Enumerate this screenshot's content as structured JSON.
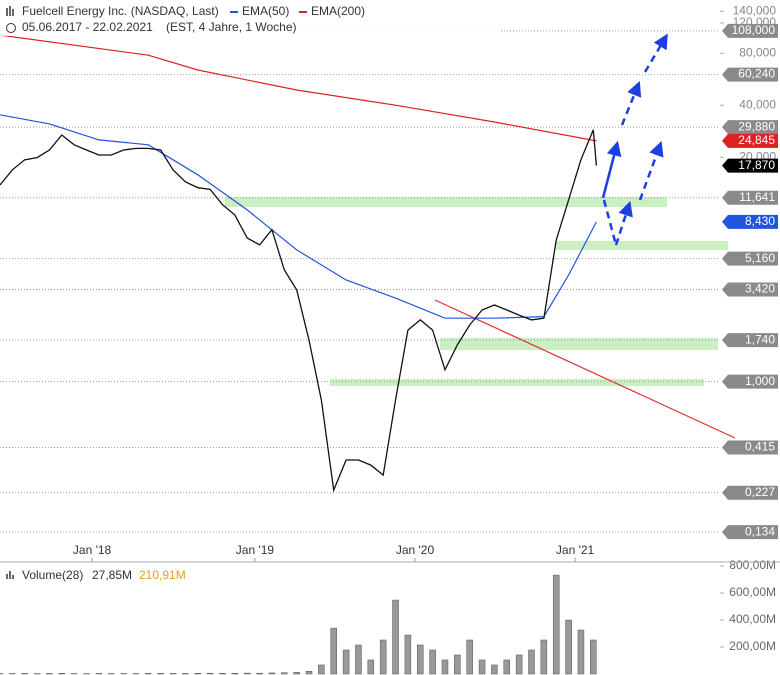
{
  "chart_data": [
    {
      "type": "line",
      "title": "Fuelcell Energy Inc. (NASDAQ, Last)",
      "subtitle": "05.06.2017 - 22.02.2021",
      "note": "(EST, 4 Jahre, 1 Woche)",
      "log_scale": true,
      "xlim": [
        0,
        233
      ],
      "ylim": [
        0.09,
        163
      ],
      "xticks": [
        {
          "value": 29.8,
          "label": "Jan '18"
        },
        {
          "value": 82.5,
          "label": "Jan '19"
        },
        {
          "value": 134.3,
          "label": "Jan '20"
        },
        {
          "value": 186.1,
          "label": "Jan '21"
        }
      ],
      "yticks": [
        {
          "value": 140,
          "label": "140,000"
        },
        {
          "value": 120,
          "label": "120,000"
        },
        {
          "value": 80,
          "label": "80,000"
        },
        {
          "value": 40,
          "label": "40,000"
        },
        {
          "value": 20,
          "label": "20,000"
        }
      ],
      "level_ticks": [
        {
          "value": 108,
          "label": "108,000"
        },
        {
          "value": 60.24,
          "label": "60,240"
        },
        {
          "value": 29.88,
          "label": "29,880"
        },
        {
          "value": 11.641,
          "label": "11,641"
        },
        {
          "value": 5.16,
          "label": "5,160"
        },
        {
          "value": 3.42,
          "label": "3,420"
        },
        {
          "value": 1.74,
          "label": "1,740"
        },
        {
          "value": 1.0,
          "label": "1,000"
        },
        {
          "value": 0.415,
          "label": "0,415"
        },
        {
          "value": 0.227,
          "label": "0,227"
        },
        {
          "value": 0.134,
          "label": "0,134"
        }
      ],
      "last_label": {
        "value": 17.87,
        "label": "17,870"
      },
      "price": {
        "color": "#111111",
        "x": [
          0,
          4,
          8,
          12,
          16,
          20,
          24,
          28,
          32,
          36,
          40,
          44,
          48,
          52,
          56,
          60,
          64,
          68,
          72,
          76,
          80,
          84,
          88,
          92,
          96,
          100,
          104,
          108,
          112,
          116,
          120,
          124,
          128,
          132,
          136,
          140,
          144,
          148,
          152,
          156,
          160,
          164,
          168,
          172,
          176,
          180,
          184,
          188,
          192,
          193
        ],
        "values": [
          13.8,
          16.9,
          19.3,
          19.9,
          22.0,
          26.9,
          23.6,
          22.0,
          20.6,
          20.6,
          22.0,
          22.5,
          22.5,
          22.0,
          16.9,
          14.4,
          13.3,
          13.0,
          10.6,
          9.25,
          6.8,
          6.2,
          7.6,
          4.44,
          3.4,
          1.74,
          0.78,
          0.235,
          0.351,
          0.351,
          0.328,
          0.287,
          0.78,
          1.99,
          2.28,
          1.99,
          1.17,
          1.63,
          2.13,
          2.6,
          2.78,
          2.6,
          2.43,
          2.28,
          2.33,
          6.6,
          11.3,
          19.3,
          28.8,
          17.87
        ]
      },
      "series": [
        {
          "name": "EMA(50)",
          "color": "#2255dd",
          "x": [
            0,
            16,
            32,
            48,
            64,
            80,
            96,
            112,
            128,
            144,
            160,
            176,
            184,
            193
          ],
          "values": [
            35.2,
            31.2,
            25.2,
            23.6,
            15.8,
            9.9,
            5.8,
            3.88,
            3.05,
            2.33,
            2.33,
            2.38,
            4.15,
            8.43
          ],
          "last_label": {
            "value": 8.43,
            "label": "8,430"
          }
        },
        {
          "name": "EMA(200)",
          "color": "#dd2222",
          "x": [
            0,
            48,
            64,
            96,
            128,
            160,
            193
          ],
          "values": [
            102,
            78,
            64,
            49,
            40,
            32,
            24.845
          ],
          "last_label": {
            "value": 24.845,
            "label": "24,845"
          }
        }
      ]
    },
    {
      "type": "bar",
      "title": "Volume(28)",
      "value_label": "27,85M",
      "max_label": "210,91M",
      "color": "#999999",
      "ylim": [
        0,
        830
      ],
      "yticks": [
        {
          "value": 200,
          "label": "200,00M"
        },
        {
          "value": 400,
          "label": "400,00M"
        },
        {
          "value": 600,
          "label": "600,00M"
        },
        {
          "value": 800,
          "label": "800,00M"
        }
      ],
      "x": [
        0,
        4,
        8,
        12,
        16,
        20,
        24,
        28,
        32,
        36,
        40,
        44,
        48,
        52,
        56,
        60,
        64,
        68,
        72,
        76,
        80,
        84,
        88,
        92,
        96,
        100,
        104,
        108,
        112,
        116,
        120,
        124,
        128,
        132,
        136,
        140,
        144,
        148,
        152,
        156,
        160,
        164,
        168,
        172,
        176,
        180,
        184,
        188,
        192
      ],
      "values": [
        3,
        3,
        4,
        3,
        4,
        5,
        3,
        3,
        4,
        3,
        3,
        3,
        4,
        5,
        4,
        4,
        5,
        6,
        5,
        5,
        7,
        6,
        8,
        10,
        12,
        20,
        67,
        340,
        178,
        215,
        104,
        252,
        548,
        289,
        215,
        178,
        104,
        141,
        252,
        104,
        67,
        104,
        141,
        178,
        252,
        733,
        400,
        326,
        252
      ]
    }
  ]
}
